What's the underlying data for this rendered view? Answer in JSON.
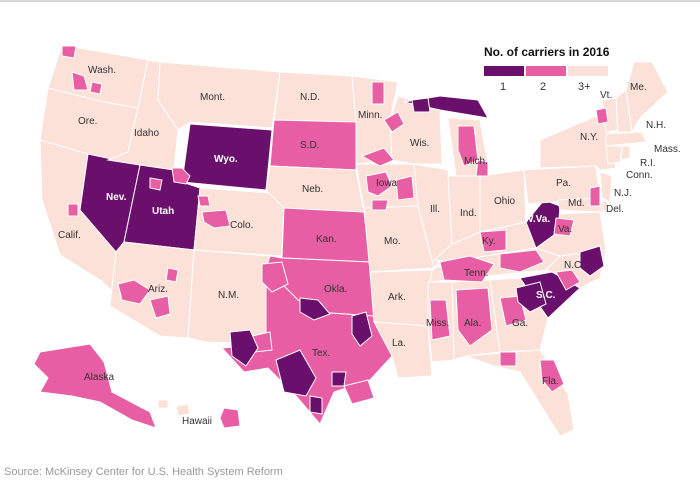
{
  "legend": {
    "title": "No. of carriers in 2016",
    "items": [
      {
        "label": "1",
        "color": "#6a0f6c"
      },
      {
        "label": "2",
        "color": "#e85ea4"
      },
      {
        "label": "3+",
        "color": "#fbe1d8"
      }
    ]
  },
  "colors": {
    "one": "#6a0f6c",
    "two": "#e85ea4",
    "three_plus": "#fbe1d8",
    "border": "#ffffff",
    "label": "#333333"
  },
  "states": {
    "wash": "Wash.",
    "ore": "Ore.",
    "calif": "Calif.",
    "nev": "Nev.",
    "idaho": "Idaho",
    "mont": "Mont.",
    "wyo": "Wyo.",
    "utah": "Utah",
    "ariz": "Ariz.",
    "colo": "Colo.",
    "nm": "N.M.",
    "nd": "N.D.",
    "sd": "S.D.",
    "neb": "Neb.",
    "kan": "Kan.",
    "okla": "Okla.",
    "tex": "Tex.",
    "minn": "Minn.",
    "iowa": "Iowa",
    "mo": "Mo.",
    "ark": "Ark.",
    "la": "La.",
    "wis": "Wis.",
    "ill": "Ill.",
    "mich": "Mich.",
    "ind": "Ind.",
    "ohio": "Ohio",
    "ky": "Ky.",
    "tenn": "Tenn.",
    "miss": "Miss.",
    "ala": "Ala.",
    "ga": "Ga.",
    "fla": "Fla.",
    "sc": "S.C.",
    "nc": "N.C.",
    "va": "Va.",
    "wva": "W.Va.",
    "md": "Md.",
    "del": "Del.",
    "pa": "Pa.",
    "nj": "N.J.",
    "ny": "N.Y.",
    "conn": "Conn.",
    "ri": "R.I.",
    "mass": "Mass.",
    "vt": "Vt.",
    "nh": "N.H.",
    "me": "Me.",
    "alaska": "Alaska",
    "hawaii": "Hawaii"
  },
  "source": "Source: McKinsey Center for U.S. Health System Reform"
}
